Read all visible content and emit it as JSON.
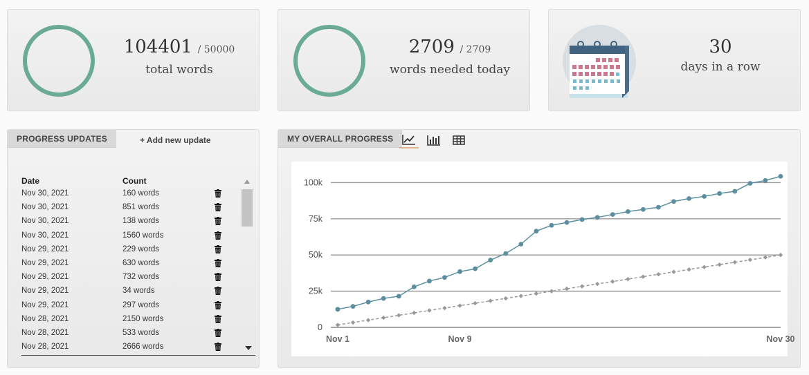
{
  "stats": {
    "total": {
      "value": "104401",
      "goal": "/ 50000",
      "label": "total words",
      "progress": 1.0
    },
    "today": {
      "value": "2709",
      "goal": "/ 2709",
      "label": "words needed today",
      "progress": 1.0
    },
    "streak": {
      "value": "30",
      "label": "days in a row"
    }
  },
  "progress_updates": {
    "tab_label": "PROGRESS UPDATES",
    "add_label": "+ Add new update",
    "columns": [
      "Date",
      "Count"
    ],
    "rows": [
      {
        "date": "Nov 30, 2021",
        "count": "160 words"
      },
      {
        "date": "Nov 30, 2021",
        "count": "851 words"
      },
      {
        "date": "Nov 30, 2021",
        "count": "138 words"
      },
      {
        "date": "Nov 30, 2021",
        "count": "1560 words"
      },
      {
        "date": "Nov 29, 2021",
        "count": "229 words"
      },
      {
        "date": "Nov 29, 2021",
        "count": "630 words"
      },
      {
        "date": "Nov 29, 2021",
        "count": "732 words"
      },
      {
        "date": "Nov 29, 2021",
        "count": "34 words"
      },
      {
        "date": "Nov 29, 2021",
        "count": "297 words"
      },
      {
        "date": "Nov 28, 2021",
        "count": "2150 words"
      },
      {
        "date": "Nov 28, 2021",
        "count": "533 words"
      },
      {
        "date": "Nov 28, 2021",
        "count": "2666 words"
      }
    ]
  },
  "overall": {
    "tab_label": "MY OVERALL PROGRESS",
    "views": [
      "line-chart-icon",
      "bar-chart-icon",
      "table-icon"
    ],
    "active_view": "line-chart-icon"
  },
  "chart_data": {
    "type": "line",
    "x": [
      1,
      2,
      3,
      4,
      5,
      6,
      7,
      8,
      9,
      10,
      11,
      12,
      13,
      14,
      15,
      16,
      17,
      18,
      19,
      20,
      21,
      22,
      23,
      24,
      25,
      26,
      27,
      28,
      29,
      30
    ],
    "x_tick_labels": [
      {
        "x": 1,
        "label": "Nov 1"
      },
      {
        "x": 9,
        "label": "Nov 9"
      },
      {
        "x": 30,
        "label": "Nov 30"
      }
    ],
    "ylim": [
      0,
      105000
    ],
    "y_ticks": [
      0,
      25000,
      50000,
      75000,
      100000
    ],
    "y_tick_labels": [
      "0",
      "25k",
      "50k",
      "75k",
      "100k"
    ],
    "grid": true,
    "series": [
      {
        "style": "solid",
        "color": "#5b8fa0",
        "values": [
          12500,
          14500,
          17500,
          20000,
          21500,
          28000,
          32000,
          34500,
          38500,
          40500,
          46500,
          51000,
          57500,
          66500,
          70500,
          72500,
          74500,
          76000,
          78000,
          80000,
          81500,
          83000,
          87000,
          89000,
          90500,
          92500,
          94000,
          99500,
          101500,
          104401
        ]
      },
      {
        "style": "dashed",
        "color": "#999999",
        "values": [
          1667,
          3333,
          5000,
          6667,
          8333,
          10000,
          11667,
          13333,
          15000,
          16667,
          18333,
          20000,
          21667,
          23333,
          25000,
          26667,
          28333,
          30000,
          31667,
          33333,
          35000,
          36667,
          38333,
          40000,
          41667,
          43333,
          45000,
          46667,
          48333,
          50000
        ]
      }
    ]
  }
}
